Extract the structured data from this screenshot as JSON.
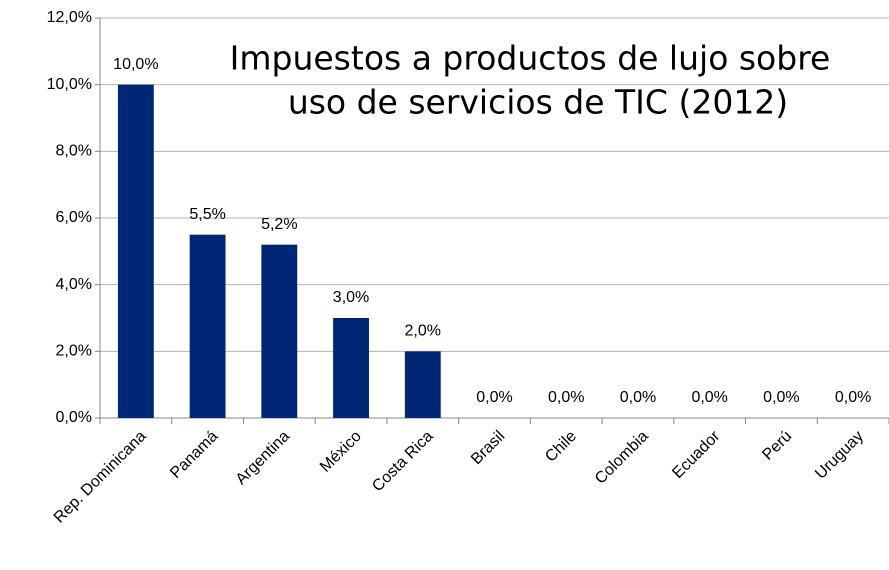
{
  "chart_data": {
    "type": "bar",
    "title": [
      "Impuestos a productos de lujo sobre",
      "uso de servicios de TIC (2012)"
    ],
    "categories": [
      "Rep. Dominicana",
      "Panamá",
      "Argentina",
      "México",
      "Costa Rica",
      "Brasil",
      "Chile",
      "Colombia",
      "Ecuador",
      "Perú",
      "Uruguay"
    ],
    "values": [
      10,
      5.5,
      5.2,
      3,
      2,
      0,
      0,
      0,
      0,
      0,
      0
    ],
    "value_labels": [
      "10,0%",
      "5,5%",
      "5,2%",
      "3,0%",
      "2,0%",
      "0,0%",
      "0,0%",
      "0,0%",
      "0,0%",
      "0,0%",
      "0,0%"
    ],
    "color": "#002776",
    "ylim": [
      0,
      12
    ],
    "yticks": [
      {
        "value": 0,
        "label": "0,0%"
      },
      {
        "value": 2,
        "label": "2,0%"
      },
      {
        "value": 4,
        "label": "4,0%"
      },
      {
        "value": 6,
        "label": "6,0%"
      },
      {
        "value": 8,
        "label": "8,0%"
      },
      {
        "value": 10,
        "label": "10,0%"
      },
      {
        "value": 12,
        "label": "12,0%"
      }
    ],
    "grid": true
  }
}
